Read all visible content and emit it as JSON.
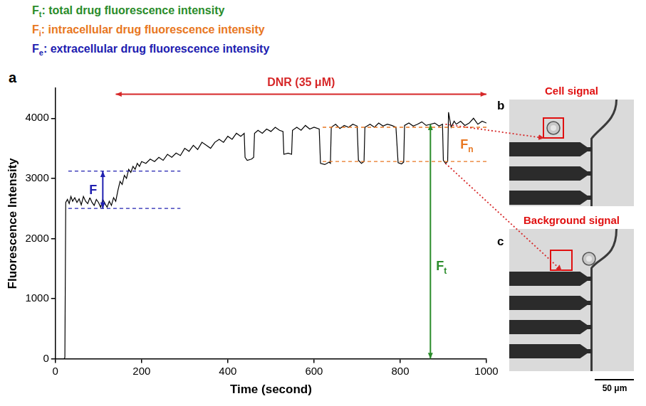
{
  "header_lines": [
    {
      "symbol": "F",
      "sub": "t",
      "text": ": total drug fluorescence intensity",
      "color": "#2a8c2a"
    },
    {
      "symbol": "F",
      "sub": "i",
      "text": ": intracellular drug fluorescence intensity",
      "color": "#e87722"
    },
    {
      "symbol": "F",
      "sub": "e",
      "text": ": extracellular drug fluorescence intensity",
      "color": "#2020b0"
    }
  ],
  "chart_data": {
    "type": "line",
    "panel": "a",
    "x_label": "Time (second)",
    "y_label": "Fluorescence Intensity",
    "xlim": [
      0,
      1000
    ],
    "xticks": [
      0,
      200,
      400,
      600,
      800,
      1000
    ],
    "ylim": [
      0,
      4500
    ],
    "yticks": [
      0,
      1000,
      2000,
      3000,
      4000
    ],
    "grid": false,
    "color": "#000000",
    "marker": "none",
    "line_style": "solid",
    "x": [
      0,
      10,
      20,
      22,
      24,
      28,
      32,
      36,
      40,
      45,
      50,
      55,
      60,
      65,
      70,
      75,
      80,
      85,
      90,
      95,
      100,
      105,
      110,
      115,
      120,
      125,
      130,
      135,
      140,
      145,
      150,
      155,
      160,
      165,
      170,
      175,
      180,
      185,
      190,
      195,
      200,
      210,
      220,
      230,
      240,
      250,
      260,
      270,
      280,
      290,
      300,
      310,
      320,
      330,
      340,
      350,
      360,
      370,
      380,
      390,
      400,
      410,
      420,
      430,
      438,
      440,
      445,
      455,
      460,
      462,
      470,
      480,
      490,
      500,
      510,
      520,
      528,
      530,
      540,
      548,
      550,
      560,
      570,
      580,
      590,
      600,
      612,
      615,
      625,
      635,
      638,
      640,
      650,
      660,
      670,
      680,
      690,
      700,
      703,
      710,
      716,
      718,
      730,
      740,
      750,
      760,
      770,
      780,
      790,
      795,
      803,
      808,
      810,
      820,
      830,
      840,
      850,
      860,
      870,
      880,
      890,
      898,
      900,
      905,
      910,
      912,
      918,
      925,
      930,
      940,
      950,
      960,
      970,
      980,
      990,
      1000
    ],
    "values": [
      0,
      0,
      0,
      20,
      2600,
      2650,
      2580,
      2700,
      2620,
      2680,
      2600,
      2660,
      2560,
      2700,
      2620,
      2580,
      2680,
      2600,
      2550,
      2650,
      2600,
      2520,
      2650,
      2580,
      2520,
      2620,
      2550,
      2680,
      2620,
      2800,
      2950,
      2900,
      3050,
      3000,
      3150,
      3100,
      3200,
      3150,
      3250,
      3200,
      3280,
      3250,
      3320,
      3280,
      3350,
      3300,
      3400,
      3350,
      3420,
      3380,
      3500,
      3450,
      3550,
      3480,
      3600,
      3550,
      3500,
      3600,
      3650,
      3600,
      3700,
      3650,
      3750,
      3700,
      3750,
      3350,
      3300,
      3320,
      3350,
      3750,
      3800,
      3750,
      3820,
      3780,
      3850,
      3800,
      3780,
      3400,
      3420,
      3400,
      3800,
      3850,
      3800,
      3880,
      3820,
      3850,
      3820,
      3250,
      3230,
      3270,
      3250,
      3850,
      3900,
      3830,
      3880,
      3850,
      3900,
      3870,
      3300,
      3250,
      3280,
      3850,
      3900,
      3850,
      3920,
      3870,
      3900,
      3880,
      3850,
      3260,
      3240,
      3270,
      3880,
      3920,
      3870,
      3900,
      3940,
      3880,
      3900,
      3920,
      3870,
      3900,
      3300,
      3250,
      3280,
      4100,
      3850,
      3950,
      3900,
      3950,
      3880,
      3920,
      4000,
      3900,
      3950,
      3920
    ],
    "annotations": [
      {
        "kind": "span",
        "text": "DNR (35 μM)",
        "color": "#d62728",
        "x": [
          140,
          1000
        ],
        "y": 4400
      },
      {
        "kind": "levels",
        "symbol": "F",
        "color": "#2020b0",
        "x": [
          30,
          290
        ],
        "levels": [
          2500,
          3120
        ],
        "arrow_x": 110
      },
      {
        "kind": "levels",
        "symbol": "F",
        "sub": "n",
        "color": "#e87722",
        "x": [
          620,
          1000
        ],
        "levels": [
          3280,
          3850
        ]
      },
      {
        "kind": "vertical",
        "symbol": "F",
        "sub": "t",
        "color": "#2a8c2a",
        "x": 870,
        "y": [
          0,
          3900
        ]
      }
    ]
  },
  "images": [
    {
      "panel": "b",
      "caption": "Cell signal",
      "box": "cell",
      "from": [
        905,
        3900
      ]
    },
    {
      "panel": "c",
      "caption": "Background signal",
      "box": "background",
      "from": [
        905,
        3250
      ]
    }
  ],
  "scale_bar": "50 μm"
}
